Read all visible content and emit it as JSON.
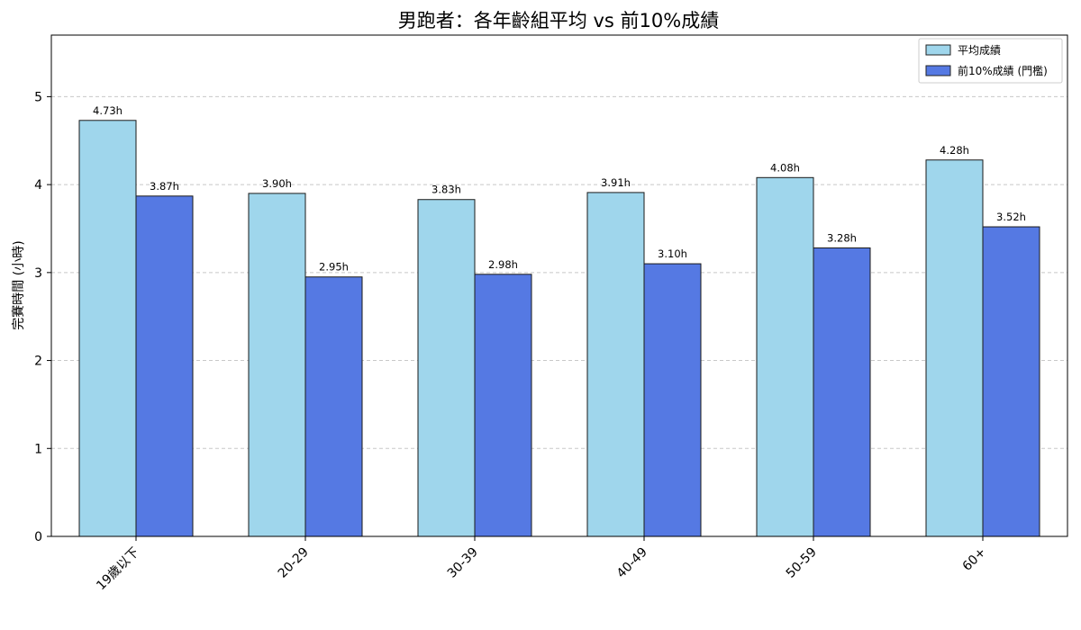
{
  "chart_data": {
    "type": "bar",
    "title": "男跑者：各年齡組平均 vs 前10%成績",
    "xlabel": "",
    "ylabel": "完賽時間 (小時)",
    "categories": [
      "19歲以下",
      "20-29",
      "30-39",
      "40-49",
      "50-59",
      "60+"
    ],
    "series": [
      {
        "name": "平均成績",
        "values": [
          4.73,
          3.9,
          3.83,
          3.91,
          4.08,
          4.28
        ],
        "color": "#9fd6ec",
        "labels": [
          "4.73h",
          "3.90h",
          "3.83h",
          "3.91h",
          "4.08h",
          "4.28h"
        ]
      },
      {
        "name": "前10%成績 (門檻)",
        "values": [
          3.87,
          2.95,
          2.98,
          3.1,
          3.28,
          3.52
        ],
        "color": "#5579e3",
        "labels": [
          "3.87h",
          "2.95h",
          "2.98h",
          "3.10h",
          "3.28h",
          "3.52h"
        ]
      }
    ],
    "ylim": [
      0,
      5.7
    ],
    "yticks": [
      0,
      1,
      2,
      3,
      4,
      5
    ],
    "grid": true,
    "legend_position": "top-right"
  }
}
